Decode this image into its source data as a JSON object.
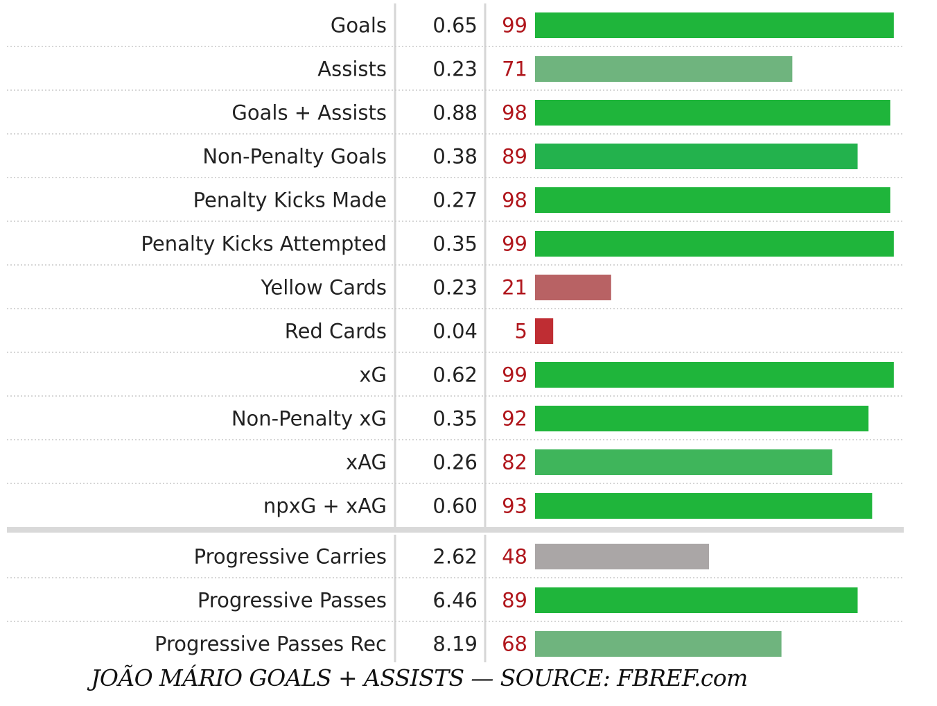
{
  "chart_data": {
    "type": "bar",
    "title": "",
    "xlabel": "",
    "ylabel": "",
    "xlim": [
      0,
      100
    ],
    "categories": [
      "Goals",
      "Assists",
      "Goals + Assists",
      "Non-Penalty Goals",
      "Penalty Kicks Made",
      "Penalty Kicks Attempted",
      "Yellow Cards",
      "Red Cards",
      "xG",
      "Non-Penalty xG",
      "xAG",
      "npxG + xAG",
      "Progressive Carries",
      "Progressive Passes",
      "Progressive Passes Rec"
    ],
    "per90": [
      "0.65",
      "0.23",
      "0.88",
      "0.38",
      "0.27",
      "0.35",
      "0.23",
      "0.04",
      "0.62",
      "0.35",
      "0.26",
      "0.60",
      "2.62",
      "6.46",
      "8.19"
    ],
    "values": [
      99,
      71,
      98,
      89,
      98,
      99,
      21,
      5,
      99,
      92,
      82,
      93,
      48,
      89,
      68
    ],
    "group_break_after": 12,
    "bar_colors": [
      "#1fb53b",
      "#6fb47e",
      "#1fb53b",
      "#23b24d",
      "#1fb53b",
      "#1fb53b",
      "#b86264",
      "#bf2d33",
      "#1fb53b",
      "#1fb53b",
      "#3fb55b",
      "#1fb53b",
      "#aaa6a6",
      "#1fb53b",
      "#6fb47e"
    ],
    "percentile_color": "#b0161c"
  },
  "caption": "JOÃO MÁRIO GOALS + ASSISTS — SOURCE: FBREF.com"
}
